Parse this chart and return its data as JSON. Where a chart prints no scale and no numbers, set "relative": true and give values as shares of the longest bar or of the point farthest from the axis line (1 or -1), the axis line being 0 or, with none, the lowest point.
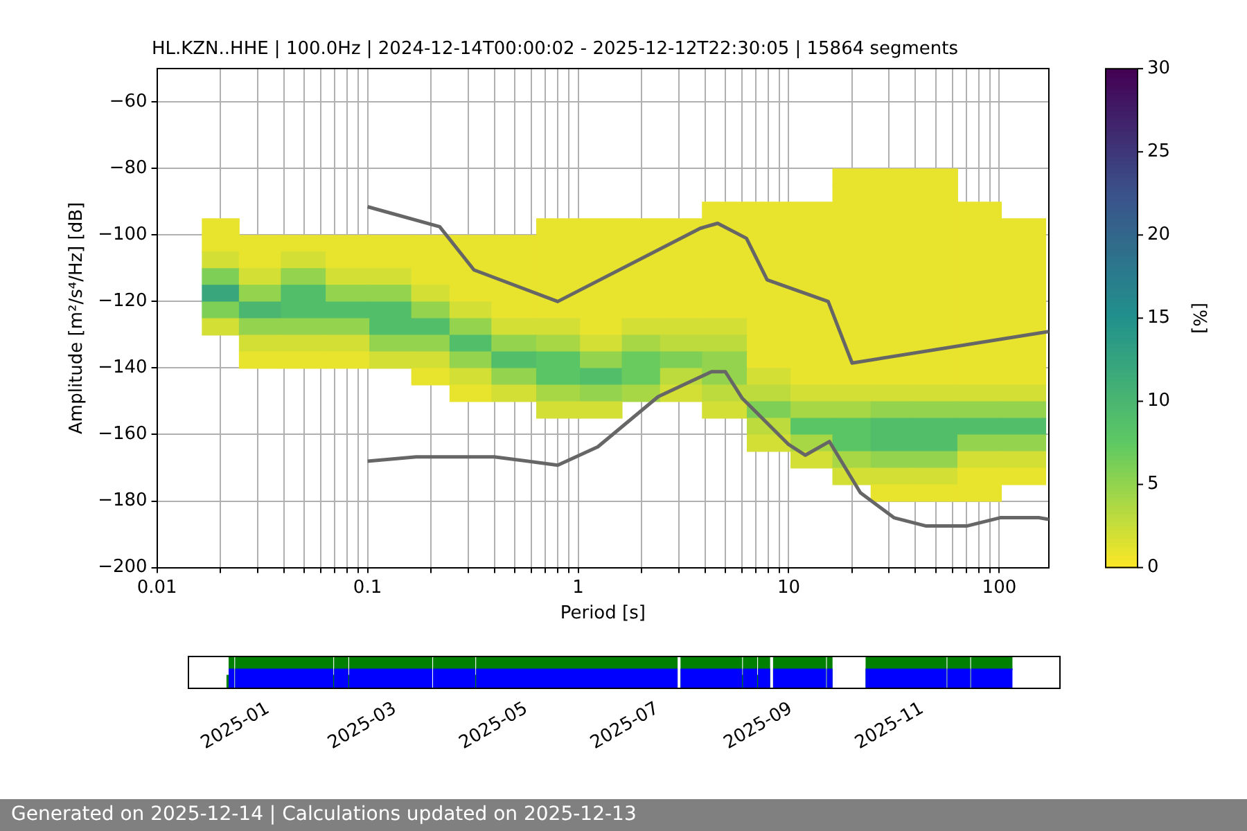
{
  "chart_data": [
    {
      "type": "heatmap",
      "title": "HL.KZN..HHE | 100.0Hz | 2024-12-14T00:00:02 - 2025-12-12T22:30:05 | 15864 segments",
      "xlabel": "Period [s]",
      "ylabel": "Amplitude [m²/s⁴/Hz] [dB]",
      "clabel": "[%]",
      "log": "x",
      "grid": true,
      "x": [
        0.02,
        0.03,
        0.05,
        0.08,
        0.13,
        0.2,
        0.3,
        0.5,
        0.8,
        1.3,
        2,
        3,
        5,
        8,
        13,
        20,
        30,
        50,
        80,
        130
      ],
      "y": [
        -82.5,
        -87.5,
        -92.5,
        -97.5,
        -102.5,
        -107.5,
        -112.5,
        -117.5,
        -122.5,
        -127.5,
        -132.5,
        -137.5,
        -142.5,
        -147.5,
        -152.5,
        -157.5,
        -162.5,
        -167.5,
        -172.5,
        -177.5
      ],
      "cells": [
        [
          null,
          null,
          null,
          null,
          null,
          null,
          null,
          null,
          null,
          null,
          null,
          null,
          null,
          null,
          null,
          1,
          1,
          1,
          null,
          null
        ],
        [
          null,
          null,
          null,
          null,
          null,
          null,
          null,
          null,
          null,
          null,
          null,
          null,
          null,
          null,
          null,
          1,
          1,
          1,
          null,
          null
        ],
        [
          null,
          null,
          null,
          null,
          null,
          null,
          null,
          null,
          null,
          null,
          null,
          null,
          1,
          1,
          1,
          1,
          1,
          1,
          1,
          null
        ],
        [
          1,
          null,
          null,
          null,
          null,
          null,
          null,
          null,
          1,
          1,
          1,
          1,
          1,
          1,
          1,
          1,
          1,
          1,
          1,
          1
        ],
        [
          1,
          1,
          1,
          1,
          1,
          1,
          1,
          1,
          1,
          1,
          1,
          1,
          1,
          1,
          1,
          1,
          1,
          1,
          1,
          1
        ],
        [
          2,
          1,
          2,
          1,
          1,
          1,
          1,
          1,
          1,
          1,
          1,
          1,
          1,
          1,
          1,
          1,
          1,
          1,
          1,
          1
        ],
        [
          6,
          2,
          5,
          2,
          2,
          1,
          1,
          1,
          1,
          1,
          1,
          1,
          1,
          1,
          1,
          1,
          1,
          1,
          1,
          1
        ],
        [
          12,
          5,
          9,
          5,
          5,
          2,
          1,
          1,
          1,
          1,
          1,
          1,
          1,
          1,
          1,
          1,
          1,
          1,
          1,
          1
        ],
        [
          6,
          10,
          9,
          9,
          9,
          5,
          2,
          1,
          1,
          1,
          1,
          1,
          1,
          1,
          1,
          1,
          1,
          1,
          1,
          1
        ],
        [
          2,
          5,
          5,
          5,
          9,
          9,
          5,
          2,
          2,
          1,
          2,
          2,
          2,
          1,
          1,
          1,
          1,
          1,
          1,
          1
        ],
        [
          null,
          2,
          2,
          2,
          5,
          5,
          9,
          5,
          4,
          2,
          4,
          3,
          3,
          1,
          1,
          1,
          1,
          1,
          1,
          1
        ],
        [
          null,
          1,
          1,
          1,
          2,
          2,
          5,
          9,
          8,
          5,
          7,
          6,
          5,
          1,
          1,
          1,
          1,
          1,
          1,
          1
        ],
        [
          null,
          null,
          null,
          null,
          null,
          1,
          2,
          5,
          8,
          9,
          7,
          3,
          5,
          2,
          1,
          1,
          1,
          1,
          1,
          1
        ],
        [
          null,
          null,
          null,
          null,
          null,
          null,
          1,
          2,
          4,
          5,
          4,
          2,
          3,
          3,
          2,
          2,
          2,
          2,
          2,
          2
        ],
        [
          null,
          null,
          null,
          null,
          null,
          null,
          null,
          null,
          2,
          2,
          null,
          null,
          2,
          6,
          4,
          4,
          5,
          5,
          5,
          5
        ],
        [
          null,
          null,
          null,
          null,
          null,
          null,
          null,
          null,
          null,
          null,
          null,
          null,
          null,
          3,
          8,
          8,
          9,
          9,
          9,
          9
        ],
        [
          null,
          null,
          null,
          null,
          null,
          null,
          null,
          null,
          null,
          null,
          null,
          null,
          null,
          2,
          4,
          8,
          9,
          9,
          5,
          5
        ],
        [
          null,
          null,
          null,
          null,
          null,
          null,
          null,
          null,
          null,
          null,
          null,
          null,
          null,
          null,
          2,
          4,
          5,
          5,
          2,
          2
        ],
        [
          null,
          null,
          null,
          null,
          null,
          null,
          null,
          null,
          null,
          null,
          null,
          null,
          null,
          null,
          null,
          2,
          2,
          2,
          1,
          1
        ],
        [
          null,
          null,
          null,
          null,
          null,
          null,
          null,
          null,
          null,
          null,
          null,
          null,
          null,
          null,
          null,
          null,
          1,
          1,
          1,
          null
        ]
      ],
      "xlim": [
        0.01,
        172
      ],
      "xticks": [
        0.01,
        {
          "value": 0.02,
          "label": null
        },
        {
          "value": 0.03,
          "label": null
        },
        {
          "value": 0.04,
          "label": null
        },
        {
          "value": 0.05,
          "label": null
        },
        {
          "value": 0.06,
          "label": null
        },
        {
          "value": 0.07,
          "label": null
        },
        {
          "value": 0.08,
          "label": null
        },
        {
          "value": 0.09,
          "label": null
        },
        0.1,
        {
          "value": 0.2,
          "label": null
        },
        {
          "value": 0.3,
          "label": null
        },
        {
          "value": 0.4,
          "label": null
        },
        {
          "value": 0.5,
          "label": null
        },
        {
          "value": 0.6,
          "label": null
        },
        {
          "value": 0.7,
          "label": null
        },
        {
          "value": 0.8,
          "label": null
        },
        {
          "value": 0.9,
          "label": null
        },
        1,
        {
          "value": 2,
          "label": null
        },
        {
          "value": 3,
          "label": null
        },
        {
          "value": 4,
          "label": null
        },
        {
          "value": 5,
          "label": null
        },
        {
          "value": 6,
          "label": null
        },
        {
          "value": 7,
          "label": null
        },
        {
          "value": 8,
          "label": null
        },
        {
          "value": 9,
          "label": null
        },
        10,
        {
          "value": 20,
          "label": null
        },
        {
          "value": 30,
          "label": null
        },
        {
          "value": 40,
          "label": null
        },
        {
          "value": 50,
          "label": null
        },
        {
          "value": 60,
          "label": null
        },
        {
          "value": 70,
          "label": null
        },
        {
          "value": 80,
          "label": null
        },
        {
          "value": 90,
          "label": null
        },
        100
      ],
      "ylim": [
        -200,
        -50
      ],
      "yticks": [
        {
          "value": -200,
          "label": "−200"
        },
        {
          "value": -180,
          "label": "−180"
        },
        {
          "value": -160,
          "label": "−160"
        },
        {
          "value": -140,
          "label": "−140"
        },
        {
          "value": -120,
          "label": "−120"
        },
        {
          "value": -100,
          "label": "−100"
        },
        {
          "value": -80,
          "label": "−80"
        },
        {
          "value": -60,
          "label": "−60"
        }
      ],
      "clim": [
        0,
        30
      ],
      "cticks": [
        0,
        5,
        10,
        15,
        20,
        25,
        30
      ],
      "series": [
        {
          "type": "line",
          "color": "#666666",
          "x": [
            0.1,
            0.22,
            0.32,
            0.8,
            3.8,
            4.6,
            6.3,
            7.9,
            15.4,
            20,
            172
          ],
          "values": [
            -91.5,
            -97.5,
            -110.5,
            -120,
            -98,
            -96.5,
            -101,
            -113.5,
            -120,
            -138.5,
            -129
          ]
        },
        {
          "type": "line",
          "color": "#666666",
          "x": [
            0.1,
            0.17,
            0.4,
            0.8,
            1.24,
            2.4,
            4.3,
            5,
            6,
            10,
            12,
            15.6,
            21.9,
            31.6,
            45,
            70,
            101,
            154,
            172
          ],
          "values": [
            -168,
            -166.7,
            -166.7,
            -169.2,
            -163.7,
            -148.6,
            -141.1,
            -141.1,
            -149,
            -163,
            -166.2,
            -162.1,
            -177.5,
            -185,
            -187.5,
            -187.5,
            -185,
            -185,
            -185.5
          ]
        }
      ],
      "marker": "none",
      "legend": false,
      "annotations": [
        "Generated on 2025-12-14 | Calculations updated on 2025-12-13"
      ]
    },
    {
      "type": "area",
      "relative": true,
      "stacked": true,
      "x": [
        "2024-12-13",
        "2024-12-13",
        "2024-12-14",
        "2024-12-14",
        "2024-12-16",
        "2024-12-16",
        "2024-12-17",
        "2024-12-17",
        "2025-01-31",
        "2025-01-31",
        "2025-02-01",
        "2025-02-01",
        "2025-02-07",
        "2025-02-07",
        "2025-02-08",
        "2025-02-08",
        "2025-03-18",
        "2025-03-18",
        "2025-03-19",
        "2025-03-19",
        "2025-04-07",
        "2025-04-07",
        "2025-04-08",
        "2025-04-08",
        "2025-07-10",
        "2025-07-10",
        "2025-07-12",
        "2025-07-12",
        "2025-08-09",
        "2025-08-09",
        "2025-08-10",
        "2025-08-10",
        "2025-08-16",
        "2025-08-16",
        "2025-08-17",
        "2025-08-17",
        "2025-08-22",
        "2025-08-22",
        "2025-08-24",
        "2025-08-24",
        "2025-09-17",
        "2025-09-17",
        "2025-09-18",
        "2025-09-18",
        "2025-09-20",
        "2025-09-20",
        "2025-10-06",
        "2025-10-06",
        "2025-11-12",
        "2025-11-12",
        "2025-11-13",
        "2025-11-13",
        "2025-11-23",
        "2025-11-23",
        "2025-11-24",
        "2025-11-24",
        "2025-12-13"
      ],
      "xlim": [
        "2024-11-25",
        "2026-01-04"
      ],
      "xticks": [
        {
          "value": "2025-01-01",
          "label": "2025-01"
        },
        {
          "value": "2025-03-01",
          "label": "2025-03"
        },
        {
          "value": "2025-05-01",
          "label": "2025-05"
        },
        {
          "value": "2025-07-01",
          "label": "2025-07"
        },
        {
          "value": "2025-09-01",
          "label": "2025-09"
        },
        {
          "value": "2025-11-01",
          "label": "2025-11"
        }
      ],
      "legend": false,
      "series": [
        {
          "color": "#0000ff",
          "values": [
            0,
            0,
            0,
            0.6,
            0.6,
            0,
            0,
            0.6,
            0.6,
            0,
            0,
            0.6,
            0.6,
            0,
            0,
            0.6,
            0.6,
            0,
            0,
            0.6,
            0.6,
            0,
            0,
            0.6,
            0.6,
            0,
            0,
            0.6,
            0.6,
            0,
            0,
            0.6,
            0.6,
            0,
            0,
            0.6,
            0.6,
            0,
            0,
            0.6,
            0.6,
            0,
            0,
            0.6,
            0.6,
            0,
            0,
            0.6,
            0.6,
            0,
            0,
            0.6,
            0.6,
            0,
            0,
            0.6,
            0.6
          ]
        },
        {
          "color": "#008000",
          "values": [
            0,
            0.4,
            0.4,
            0.4,
            0.4,
            0,
            0,
            0.4,
            0.4,
            0.4,
            0.4,
            0.4,
            0.4,
            0.4,
            0.4,
            0.4,
            0.4,
            0,
            0,
            0.4,
            0.4,
            0.4,
            0.4,
            0.4,
            0.4,
            0,
            0,
            0.4,
            0.4,
            0.4,
            0.4,
            0.4,
            0.4,
            0.4,
            0.4,
            0.4,
            0.4,
            0,
            0,
            0.4,
            0.4,
            0,
            0,
            0.4,
            0.4,
            0,
            0,
            0.4,
            0.4,
            0,
            0,
            0.4,
            0.4,
            0,
            0,
            0.4,
            0.4
          ]
        }
      ]
    }
  ]
}
